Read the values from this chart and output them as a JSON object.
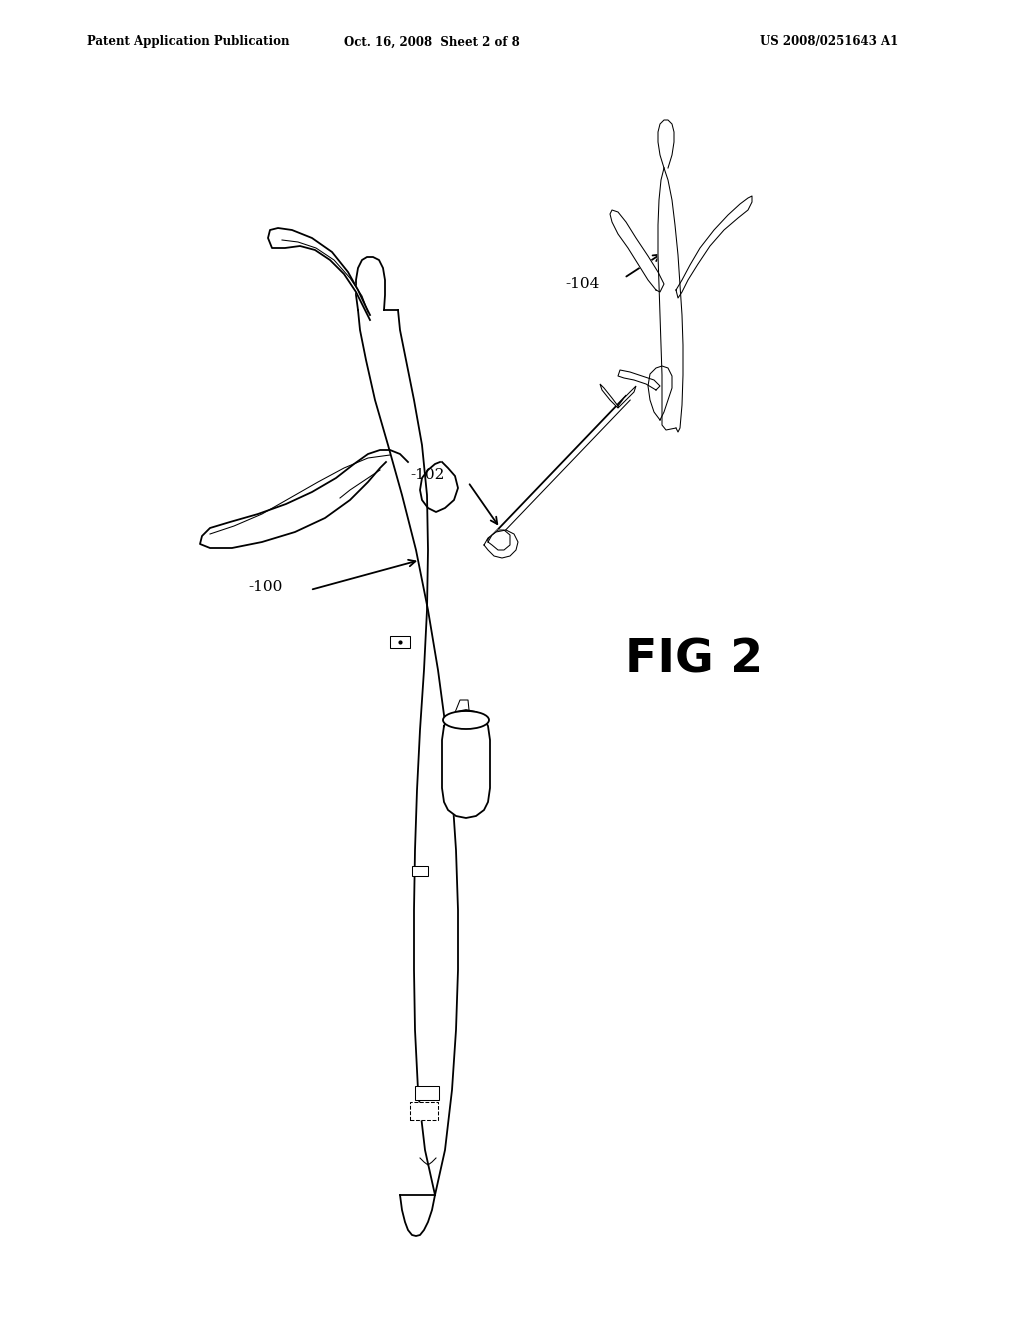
{
  "background_color": "#ffffff",
  "header_left": "Patent Application Publication",
  "header_center": "Oct. 16, 2008  Sheet 2 of 8",
  "header_right": "US 2008/0251643 A1",
  "fig_label": "FIG 2",
  "label_100": "-100",
  "label_102": "-102",
  "label_104": "-104",
  "line_color": "#000000",
  "lw": 1.3,
  "lw_thin": 0.75,
  "lw_thick": 2.0
}
